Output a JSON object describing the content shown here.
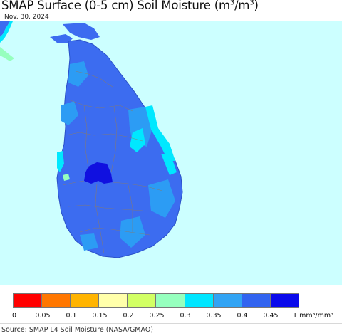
{
  "header": {
    "title_main": "SMAP Surface (0-5 cm) Soil Moisture (m",
    "title_sup1": "3",
    "title_mid": "/m",
    "title_sup2": "3",
    "title_end": ")",
    "date": "Nov. 30, 2024"
  },
  "map": {
    "region": "Sri Lanka",
    "ocean_color": "#ccffff",
    "land_color": "#3c6cf0",
    "wet_color": "#1010e0",
    "mid_color": "#2c9cf4",
    "coast_color": "#00e8ff",
    "boundary_color": "#8a7a6a"
  },
  "legend": {
    "colors": [
      "#ff0000",
      "#ff7700",
      "#ffb400",
      "#ffffaa",
      "#d2ff64",
      "#96ffbe",
      "#00e6ff",
      "#32a4f4",
      "#3264f0",
      "#0a0aeb"
    ],
    "ticks": [
      "0",
      "0.05",
      "0.1",
      "0.15",
      "0.2",
      "0.25",
      "0.3",
      "0.35",
      "0.4",
      "0.45"
    ],
    "unit_label": "1 mm³/mm³"
  },
  "footer": {
    "source": "Source: SMAP L4 Soil Moisture (NASA/GMAO)"
  }
}
